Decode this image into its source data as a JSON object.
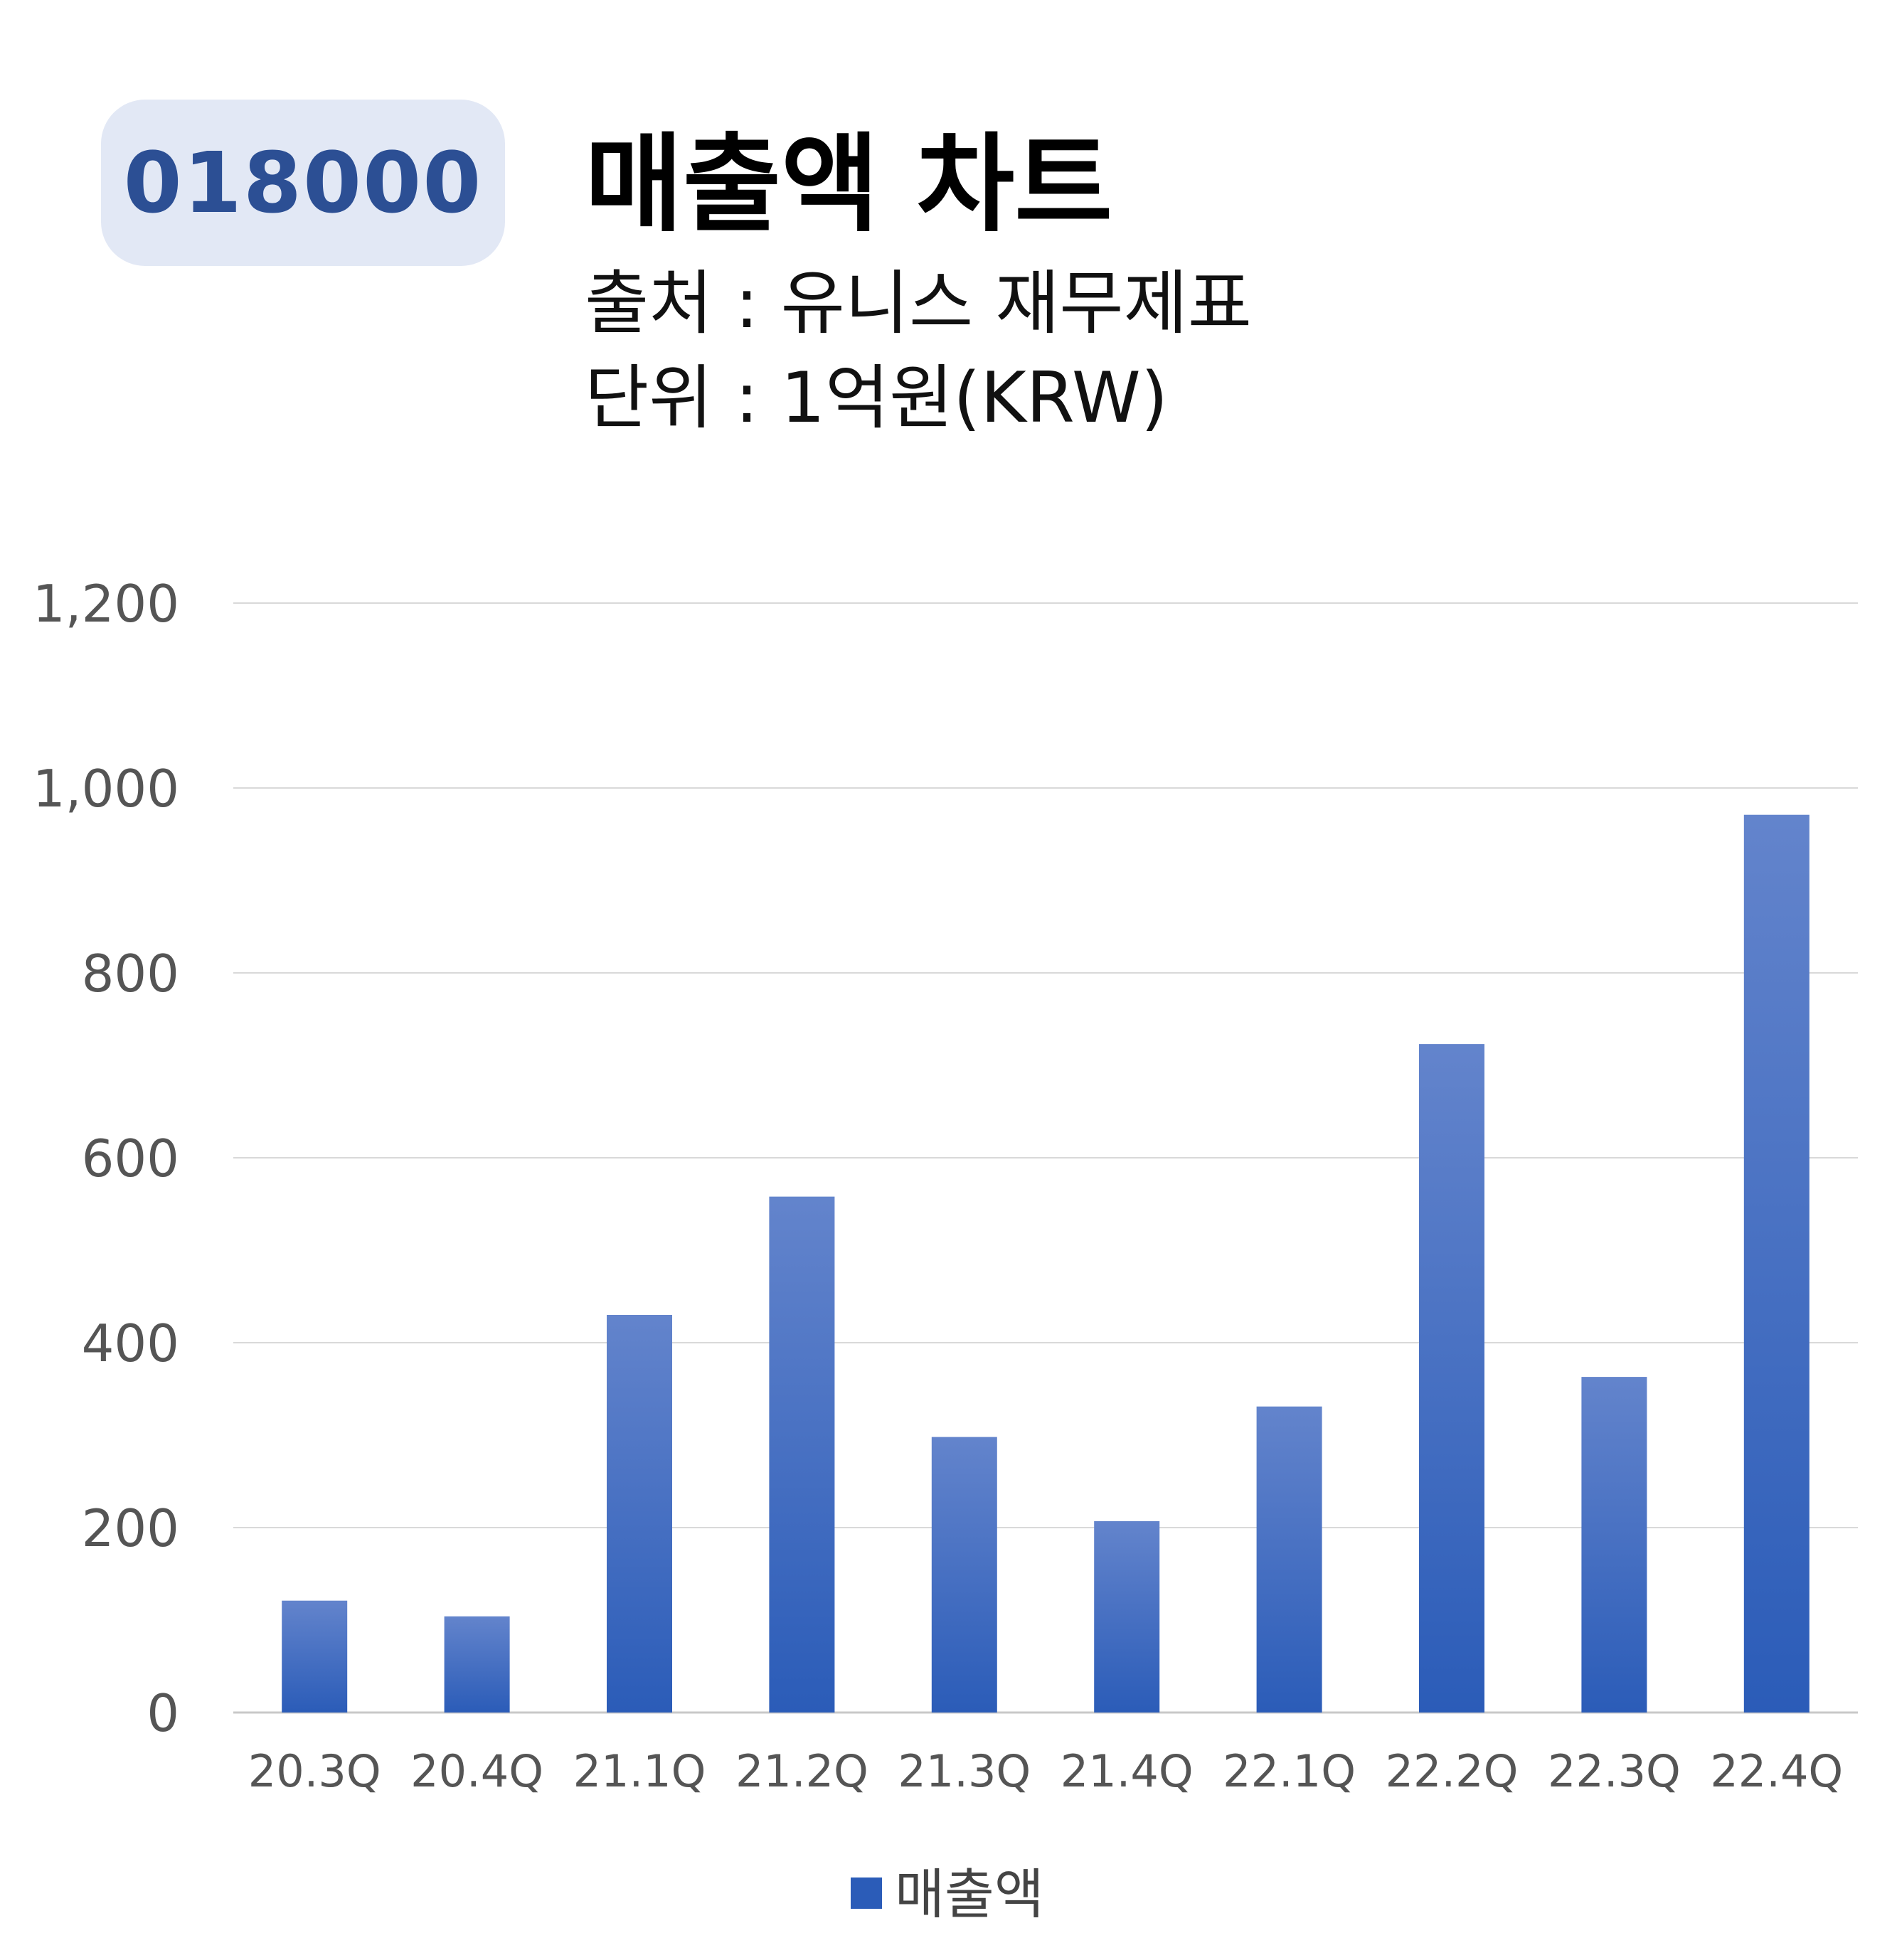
{
  "badge": {
    "code": "018000"
  },
  "header": {
    "title": "매출액 차트",
    "source": "출처 : 유니스 재무제표",
    "unit": "단위 : 1억원(KRW)"
  },
  "colors": {
    "bar_top": "#6384cc",
    "bar_bottom": "#2b5cb8",
    "grid": "#d9d9d9",
    "axis": "#c8c8c8",
    "badge_bg": "#e2e8f5",
    "badge_text": "#2c4f94"
  },
  "chart_data": {
    "type": "bar",
    "categories": [
      "20.3Q",
      "20.4Q",
      "21.1Q",
      "21.2Q",
      "21.3Q",
      "21.4Q",
      "22.1Q",
      "22.2Q",
      "22.3Q",
      "22.4Q"
    ],
    "series": [
      {
        "name": "매출액",
        "values": [
          121,
          104,
          430,
          558,
          298,
          207,
          331,
          723,
          363,
          971
        ]
      }
    ],
    "ylim": [
      0,
      1200
    ],
    "yticks": [
      0,
      200,
      400,
      600,
      800,
      1000,
      1200
    ],
    "ytick_labels": [
      "0",
      "200",
      "400",
      "600",
      "800",
      "1,000",
      "1,200"
    ],
    "grid": true,
    "legend_position": "bottom-center",
    "title": "매출액 차트",
    "xlabel": "",
    "ylabel": ""
  }
}
